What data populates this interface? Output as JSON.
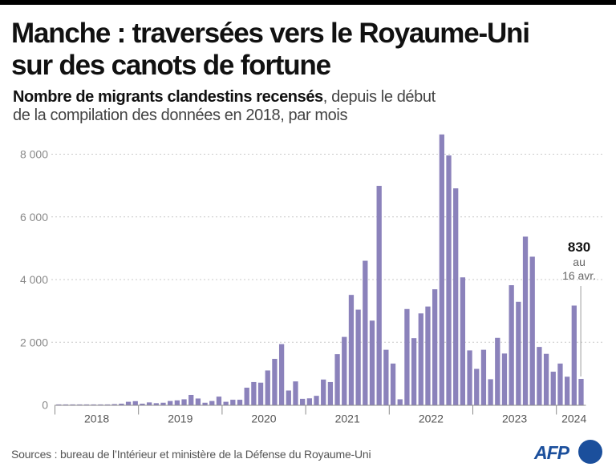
{
  "header": {
    "title_line1": "Manche : traversées vers le Royaume-Uni",
    "title_line2": "sur des canots de fortune",
    "subtitle_bold": "Nombre de migrants clandestins recensés",
    "subtitle_rest_line1": ", depuis le début",
    "subtitle_line2": "de la compilation des données en 2018, par mois"
  },
  "footer": {
    "source": "Sources : bureau de l’Intérieur et ministère de la Défense du Royaume-Uni",
    "logo_text": "AFP",
    "logo_color": "#1b4f9c"
  },
  "chart_data": {
    "type": "bar",
    "title": "Manche : traversées vers le Royaume-Uni sur des canots de fortune",
    "subtitle": "Nombre de migrants clandestins recensés, depuis le début de la compilation des données en 2018, par mois",
    "xlabel": "",
    "ylabel": "",
    "ylim": [
      0,
      8600
    ],
    "yticks": [
      0,
      2000,
      4000,
      6000,
      8000
    ],
    "ytick_labels": [
      "0",
      "2 000",
      "4 000",
      "6 000",
      "8 000"
    ],
    "grid": true,
    "bar_color": "#8b82bb",
    "year_labels": [
      "2018",
      "2019",
      "2020",
      "2021",
      "2022",
      "2023",
      "2024"
    ],
    "start": "2018-01",
    "categories": [
      "2018-01",
      "2018-02",
      "2018-03",
      "2018-04",
      "2018-05",
      "2018-06",
      "2018-07",
      "2018-08",
      "2018-09",
      "2018-10",
      "2018-11",
      "2018-12",
      "2019-01",
      "2019-02",
      "2019-03",
      "2019-04",
      "2019-05",
      "2019-06",
      "2019-07",
      "2019-08",
      "2019-09",
      "2019-10",
      "2019-11",
      "2019-12",
      "2020-01",
      "2020-02",
      "2020-03",
      "2020-04",
      "2020-05",
      "2020-06",
      "2020-07",
      "2020-08",
      "2020-09",
      "2020-10",
      "2020-11",
      "2020-12",
      "2021-01",
      "2021-02",
      "2021-03",
      "2021-04",
      "2021-05",
      "2021-06",
      "2021-07",
      "2021-08",
      "2021-09",
      "2021-10",
      "2021-11",
      "2021-12",
      "2022-01",
      "2022-02",
      "2022-03",
      "2022-04",
      "2022-05",
      "2022-06",
      "2022-07",
      "2022-08",
      "2022-09",
      "2022-10",
      "2022-11",
      "2022-12",
      "2023-01",
      "2023-02",
      "2023-03",
      "2023-04",
      "2023-05",
      "2023-06",
      "2023-07",
      "2023-08",
      "2023-09",
      "2023-10",
      "2023-11",
      "2023-12",
      "2024-01",
      "2024-02",
      "2024-03",
      "2024-04"
    ],
    "values": [
      5,
      5,
      5,
      5,
      5,
      10,
      10,
      15,
      25,
      40,
      100,
      120,
      40,
      80,
      55,
      70,
      125,
      145,
      180,
      320,
      205,
      70,
      125,
      265,
      100,
      165,
      165,
      550,
      730,
      710,
      1100,
      1470,
      1940,
      460,
      750,
      195,
      210,
      290,
      810,
      730,
      1620,
      2170,
      3510,
      3040,
      4600,
      2690,
      6990,
      1760,
      1320,
      180,
      3060,
      2130,
      2920,
      3140,
      3690,
      8630,
      7960,
      6910,
      4070,
      1740,
      1150,
      1760,
      820,
      2140,
      1640,
      3820,
      3290,
      5370,
      4730,
      1850,
      1630,
      1060,
      1320,
      900,
      3170,
      830
    ],
    "annotation": {
      "value_label": "830",
      "line1": "au",
      "line2": "16 avr.",
      "target": "2024-04"
    }
  }
}
